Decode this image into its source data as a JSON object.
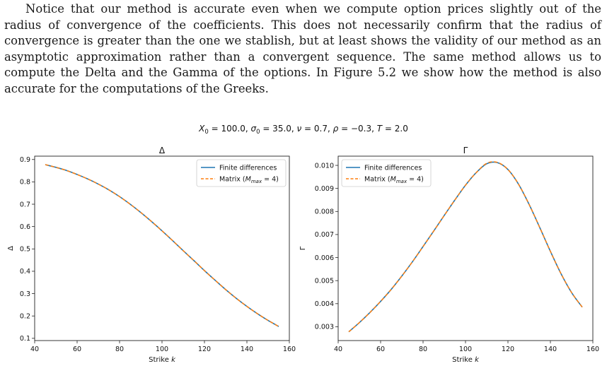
{
  "paragraph": "Notice that our method is accurate even when we compute option prices slightly out of the radius of convergence of the coefficients.  This does not necessarily confirm that the radius of convergence is greater than the one we stablish, but at least shows the validity of our method as an asymptotic approximation rather than a convergent sequence. The same method allows us to compute the Delta and the Gamma of the options. In Figure 5.2 we show how the method is also accurate for the computations of the Greeks.",
  "figure": {
    "suptitle": {
      "parts": [
        {
          "t": "X",
          "s": "i"
        },
        {
          "t": "0",
          "s": "sub"
        },
        {
          "t": " = 100.0, ",
          "s": ""
        },
        {
          "t": "σ",
          "s": "i"
        },
        {
          "t": "0",
          "s": "sub"
        },
        {
          "t": " = 35.0, ",
          "s": ""
        },
        {
          "t": "ν",
          "s": "i"
        },
        {
          "t": " = 0.7, ",
          "s": ""
        },
        {
          "t": "ρ",
          "s": "i"
        },
        {
          "t": " = −0.3, ",
          "s": ""
        },
        {
          "t": "T",
          "s": "i"
        },
        {
          "t": " = 2.0",
          "s": ""
        }
      ]
    },
    "legend": {
      "fd_label": "Finite differences",
      "matrix_prefix": "Matrix (",
      "matrix_var": "M",
      "matrix_sub": "max",
      "matrix_suffix": " = 4)"
    },
    "colors": {
      "fd": "#1f77b4",
      "matrix": "#ff7f0e"
    }
  },
  "chart_data": [
    {
      "type": "line",
      "title": "Δ",
      "xlabel": "Strike k",
      "ylabel": "Δ",
      "xlim": [
        40,
        160
      ],
      "ylim": [
        0.09,
        0.915
      ],
      "xticks": [
        40,
        60,
        80,
        100,
        120,
        140,
        160
      ],
      "yticks": [
        0.1,
        0.2,
        0.3,
        0.4,
        0.5,
        0.6,
        0.7,
        0.8,
        0.9
      ],
      "ytick_labels": [
        "0.1",
        "0.2",
        "0.3",
        "0.4",
        "0.5",
        "0.6",
        "0.7",
        "0.8",
        "0.9"
      ],
      "grid": false,
      "legend_position": "top-right",
      "x": [
        45,
        50,
        55,
        60,
        65,
        70,
        75,
        80,
        85,
        90,
        95,
        100,
        105,
        110,
        115,
        120,
        125,
        130,
        135,
        140,
        145,
        150,
        155
      ],
      "series": [
        {
          "name": "Finite differences",
          "values": [
            0.877,
            0.865,
            0.851,
            0.833,
            0.813,
            0.79,
            0.764,
            0.734,
            0.7,
            0.663,
            0.623,
            0.581,
            0.537,
            0.492,
            0.448,
            0.403,
            0.36,
            0.318,
            0.279,
            0.243,
            0.21,
            0.18,
            0.153
          ]
        },
        {
          "name": "Matrix (M_max = 4)",
          "values": [
            0.877,
            0.865,
            0.851,
            0.833,
            0.813,
            0.79,
            0.764,
            0.734,
            0.7,
            0.663,
            0.623,
            0.581,
            0.537,
            0.492,
            0.448,
            0.403,
            0.36,
            0.318,
            0.279,
            0.243,
            0.21,
            0.18,
            0.153
          ]
        }
      ]
    },
    {
      "type": "line",
      "title": "Γ",
      "xlabel": "Strike k",
      "ylabel": "Γ",
      "xlim": [
        40,
        160
      ],
      "ylim": [
        0.0024,
        0.0104
      ],
      "xticks": [
        40,
        60,
        80,
        100,
        120,
        140,
        160
      ],
      "yticks": [
        0.003,
        0.004,
        0.005,
        0.006,
        0.007,
        0.008,
        0.009,
        0.01
      ],
      "ytick_labels": [
        "0.003",
        "0.004",
        "0.005",
        "0.006",
        "0.007",
        "0.008",
        "0.009",
        "0.010"
      ],
      "grid": false,
      "legend_position": "top-left",
      "x": [
        45,
        50,
        55,
        60,
        65,
        70,
        75,
        80,
        85,
        90,
        95,
        100,
        105,
        110,
        115,
        120,
        125,
        130,
        135,
        140,
        145,
        150,
        155
      ],
      "series": [
        {
          "name": "Finite differences",
          "values": [
            0.00278,
            0.00318,
            0.00362,
            0.0041,
            0.00462,
            0.0052,
            0.00582,
            0.00648,
            0.00715,
            0.00783,
            0.0085,
            0.00914,
            0.00968,
            0.01007,
            0.01012,
            0.00982,
            0.00918,
            0.0083,
            0.0073,
            0.00627,
            0.0053,
            0.00448,
            0.00385
          ]
        },
        {
          "name": "Matrix (M_max = 4)",
          "values": [
            0.00278,
            0.00318,
            0.00362,
            0.0041,
            0.00462,
            0.0052,
            0.00582,
            0.00648,
            0.00715,
            0.00783,
            0.0085,
            0.00914,
            0.00968,
            0.01009,
            0.01013,
            0.00982,
            0.00918,
            0.0083,
            0.0073,
            0.00627,
            0.0053,
            0.00448,
            0.00385
          ]
        }
      ]
    }
  ]
}
